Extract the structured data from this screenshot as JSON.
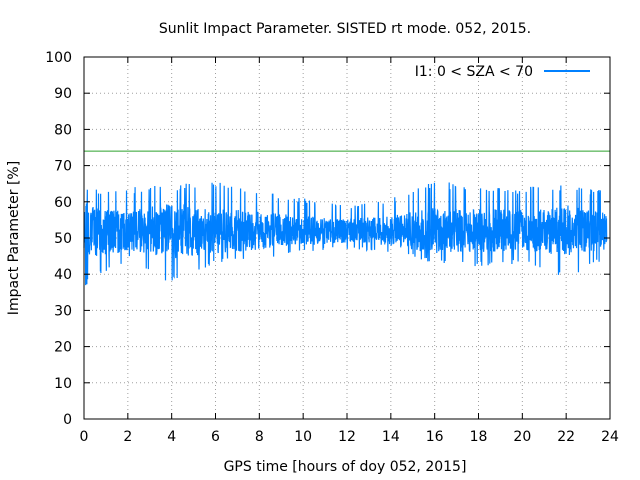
{
  "chart_data": {
    "type": "line",
    "title": "Sunlit Impact Parameter. SISTED rt mode. 052, 2015.",
    "xlabel": "GPS time [hours of doy 052, 2015]",
    "ylabel": "Impact Parameter [%]",
    "xlim": [
      0,
      24
    ],
    "ylim": [
      0,
      100
    ],
    "xticks": [
      0,
      2,
      4,
      6,
      8,
      10,
      12,
      14,
      16,
      18,
      20,
      22,
      24
    ],
    "yticks": [
      0,
      10,
      20,
      30,
      40,
      50,
      60,
      70,
      80,
      90,
      100
    ],
    "grid": true,
    "legend_position": "top-right",
    "reference_line": {
      "y": 74,
      "color": "#2ca02c"
    },
    "series": [
      {
        "name": "I1: 0 < SZA < 70",
        "color": "#0080ff",
        "x_range": [
          0,
          23.85
        ],
        "envelope_hours": [
          0,
          2,
          4,
          6,
          8,
          10,
          12,
          14,
          16,
          18,
          20,
          22,
          23.85
        ],
        "envelope_min": [
          36,
          44,
          37,
          43,
          44,
          46,
          47,
          46,
          43,
          42,
          43,
          39,
          44
        ],
        "envelope_max": [
          64,
          64,
          65,
          66,
          63,
          61,
          59,
          61,
          66,
          64,
          64,
          65,
          63
        ],
        "mean": 52
      }
    ]
  }
}
